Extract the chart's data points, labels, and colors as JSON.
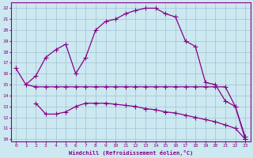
{
  "xlabel": "Windchill (Refroidissement éolien,°C)",
  "background_color": "#cce8f0",
  "line_color": "#880088",
  "grid_color": "#99bbcc",
  "xlim": [
    -0.5,
    23.5
  ],
  "ylim": [
    9.8,
    22.5
  ],
  "yticks": [
    10,
    11,
    12,
    13,
    14,
    15,
    16,
    17,
    18,
    19,
    20,
    21,
    22
  ],
  "xticks": [
    0,
    1,
    2,
    3,
    4,
    5,
    6,
    7,
    8,
    9,
    10,
    11,
    12,
    13,
    14,
    15,
    16,
    17,
    18,
    19,
    20,
    21,
    22,
    23
  ],
  "line1_x": [
    0,
    1,
    2,
    3,
    4,
    5,
    6,
    7,
    8,
    9,
    10,
    11,
    12,
    13,
    14,
    15,
    16,
    17,
    18,
    19,
    20,
    21,
    22,
    23
  ],
  "line1_y": [
    16.5,
    15.0,
    15.8,
    17.5,
    18.2,
    18.7,
    16.0,
    17.5,
    20.0,
    20.8,
    21.0,
    21.5,
    21.8,
    22.0,
    22.0,
    21.5,
    21.2,
    19.0,
    18.5,
    15.2,
    15.0,
    13.5,
    13.0,
    10.0
  ],
  "line2_x": [
    1,
    2,
    3,
    4,
    5,
    6,
    7,
    8,
    9,
    10,
    11,
    12,
    13,
    14,
    15,
    16,
    17,
    18,
    19,
    20,
    21,
    22,
    23
  ],
  "line2_y": [
    15.0,
    14.8,
    14.8,
    14.8,
    14.8,
    14.8,
    14.8,
    14.8,
    14.8,
    14.8,
    14.8,
    14.8,
    14.8,
    14.8,
    14.8,
    14.8,
    14.8,
    14.8,
    14.8,
    14.8,
    14.8,
    13.0,
    10.2
  ],
  "line3_x": [
    2,
    3,
    4,
    5,
    6,
    7,
    8,
    9,
    10,
    11,
    12,
    13,
    14,
    15,
    16,
    17,
    18,
    19,
    20,
    21,
    22,
    23
  ],
  "line3_y": [
    13.3,
    12.3,
    12.3,
    12.5,
    13.0,
    13.3,
    13.3,
    13.3,
    13.2,
    13.1,
    13.0,
    12.8,
    12.7,
    12.5,
    12.4,
    12.2,
    12.0,
    11.8,
    11.6,
    11.3,
    11.0,
    10.0
  ]
}
